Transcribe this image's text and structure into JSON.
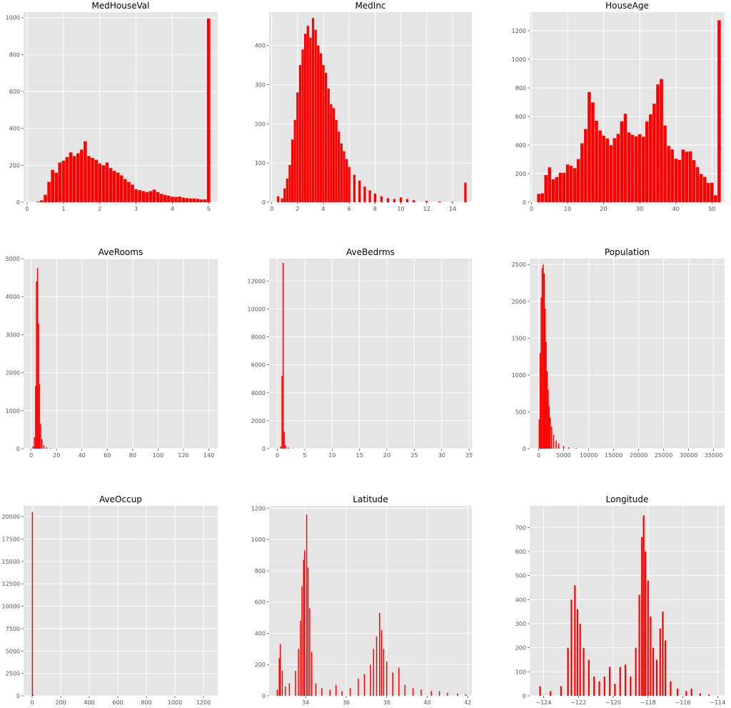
{
  "chart_data": [
    {
      "type": "bar",
      "title": "MedHouseVal",
      "xlim": [
        -0.1,
        5.25
      ],
      "ylim": [
        0,
        1030
      ],
      "xticks": [
        0,
        1,
        2,
        3,
        4,
        5
      ],
      "yticks": [
        0,
        200,
        400,
        600,
        800,
        1000
      ],
      "bars": [
        {
          "x": 0.15,
          "y": 0
        },
        {
          "x": 0.3,
          "y": 3
        },
        {
          "x": 0.4,
          "y": 10
        },
        {
          "x": 0.5,
          "y": 40
        },
        {
          "x": 0.6,
          "y": 110
        },
        {
          "x": 0.7,
          "y": 175
        },
        {
          "x": 0.8,
          "y": 160
        },
        {
          "x": 0.9,
          "y": 215
        },
        {
          "x": 1.0,
          "y": 225
        },
        {
          "x": 1.1,
          "y": 245
        },
        {
          "x": 1.2,
          "y": 270
        },
        {
          "x": 1.3,
          "y": 250
        },
        {
          "x": 1.4,
          "y": 265
        },
        {
          "x": 1.5,
          "y": 285
        },
        {
          "x": 1.6,
          "y": 330
        },
        {
          "x": 1.7,
          "y": 250
        },
        {
          "x": 1.8,
          "y": 240
        },
        {
          "x": 1.9,
          "y": 230
        },
        {
          "x": 2.0,
          "y": 210
        },
        {
          "x": 2.1,
          "y": 200
        },
        {
          "x": 2.2,
          "y": 215
        },
        {
          "x": 2.3,
          "y": 185
        },
        {
          "x": 2.4,
          "y": 170
        },
        {
          "x": 2.5,
          "y": 160
        },
        {
          "x": 2.6,
          "y": 145
        },
        {
          "x": 2.7,
          "y": 125
        },
        {
          "x": 2.8,
          "y": 110
        },
        {
          "x": 2.9,
          "y": 95
        },
        {
          "x": 3.0,
          "y": 70
        },
        {
          "x": 3.1,
          "y": 65
        },
        {
          "x": 3.2,
          "y": 60
        },
        {
          "x": 3.3,
          "y": 55
        },
        {
          "x": 3.4,
          "y": 60
        },
        {
          "x": 3.5,
          "y": 68
        },
        {
          "x": 3.6,
          "y": 55
        },
        {
          "x": 3.7,
          "y": 45
        },
        {
          "x": 3.8,
          "y": 40
        },
        {
          "x": 3.9,
          "y": 35
        },
        {
          "x": 4.0,
          "y": 30
        },
        {
          "x": 4.1,
          "y": 28
        },
        {
          "x": 4.2,
          "y": 30
        },
        {
          "x": 4.3,
          "y": 25
        },
        {
          "x": 4.4,
          "y": 22
        },
        {
          "x": 4.5,
          "y": 20
        },
        {
          "x": 4.6,
          "y": 20
        },
        {
          "x": 4.7,
          "y": 18
        },
        {
          "x": 4.8,
          "y": 15
        },
        {
          "x": 4.9,
          "y": 15
        },
        {
          "x": 5.0,
          "y": 995
        }
      ]
    },
    {
      "type": "bar",
      "title": "MedInc",
      "xlim": [
        -0.2,
        15.5
      ],
      "ylim": [
        0,
        485
      ],
      "xticks": [
        0,
        2,
        4,
        6,
        8,
        10,
        12,
        14
      ],
      "yticks": [
        0,
        100,
        200,
        300,
        400
      ],
      "bars": [
        {
          "x": 0.5,
          "y": 15
        },
        {
          "x": 0.8,
          "y": 10
        },
        {
          "x": 1.0,
          "y": 35
        },
        {
          "x": 1.2,
          "y": 60
        },
        {
          "x": 1.4,
          "y": 95
        },
        {
          "x": 1.6,
          "y": 160
        },
        {
          "x": 1.8,
          "y": 210
        },
        {
          "x": 2.0,
          "y": 280
        },
        {
          "x": 2.2,
          "y": 350
        },
        {
          "x": 2.4,
          "y": 390
        },
        {
          "x": 2.6,
          "y": 430
        },
        {
          "x": 2.8,
          "y": 450
        },
        {
          "x": 3.0,
          "y": 420
        },
        {
          "x": 3.2,
          "y": 470
        },
        {
          "x": 3.4,
          "y": 440
        },
        {
          "x": 3.6,
          "y": 400
        },
        {
          "x": 3.8,
          "y": 380
        },
        {
          "x": 4.0,
          "y": 350
        },
        {
          "x": 4.2,
          "y": 330
        },
        {
          "x": 4.4,
          "y": 290
        },
        {
          "x": 4.6,
          "y": 250
        },
        {
          "x": 4.8,
          "y": 240
        },
        {
          "x": 5.0,
          "y": 210
        },
        {
          "x": 5.2,
          "y": 180
        },
        {
          "x": 5.4,
          "y": 150
        },
        {
          "x": 5.6,
          "y": 130
        },
        {
          "x": 5.8,
          "y": 110
        },
        {
          "x": 6.0,
          "y": 90
        },
        {
          "x": 6.4,
          "y": 70
        },
        {
          "x": 6.8,
          "y": 55
        },
        {
          "x": 7.2,
          "y": 40
        },
        {
          "x": 7.6,
          "y": 30
        },
        {
          "x": 8.0,
          "y": 22
        },
        {
          "x": 8.5,
          "y": 15
        },
        {
          "x": 9.0,
          "y": 10
        },
        {
          "x": 9.5,
          "y": 8
        },
        {
          "x": 10.0,
          "y": 12
        },
        {
          "x": 10.5,
          "y": 8
        },
        {
          "x": 11.0,
          "y": 5
        },
        {
          "x": 12.0,
          "y": 3
        },
        {
          "x": 13.0,
          "y": 2
        },
        {
          "x": 14.0,
          "y": 1
        },
        {
          "x": 15.0,
          "y": 50
        }
      ]
    },
    {
      "type": "bar",
      "title": "HouseAge",
      "xlim": [
        -0.5,
        53.5
      ],
      "ylim": [
        0,
        1330
      ],
      "xticks": [
        0,
        10,
        20,
        30,
        40,
        50
      ],
      "yticks": [
        0,
        200,
        400,
        600,
        800,
        1000,
        1200
      ],
      "bars": [
        {
          "x": 2,
          "y": 58
        },
        {
          "x": 3,
          "y": 62
        },
        {
          "x": 4,
          "y": 190
        },
        {
          "x": 5,
          "y": 244
        },
        {
          "x": 6,
          "y": 160
        },
        {
          "x": 7,
          "y": 175
        },
        {
          "x": 8,
          "y": 206
        },
        {
          "x": 9,
          "y": 205
        },
        {
          "x": 10,
          "y": 264
        },
        {
          "x": 11,
          "y": 254
        },
        {
          "x": 12,
          "y": 238
        },
        {
          "x": 13,
          "y": 302
        },
        {
          "x": 14,
          "y": 412
        },
        {
          "x": 15,
          "y": 512
        },
        {
          "x": 16,
          "y": 771
        },
        {
          "x": 17,
          "y": 698
        },
        {
          "x": 18,
          "y": 570
        },
        {
          "x": 19,
          "y": 502
        },
        {
          "x": 20,
          "y": 465
        },
        {
          "x": 21,
          "y": 446
        },
        {
          "x": 22,
          "y": 399
        },
        {
          "x": 23,
          "y": 448
        },
        {
          "x": 24,
          "y": 478
        },
        {
          "x": 25,
          "y": 566
        },
        {
          "x": 26,
          "y": 619
        },
        {
          "x": 27,
          "y": 488
        },
        {
          "x": 28,
          "y": 471
        },
        {
          "x": 29,
          "y": 461
        },
        {
          "x": 30,
          "y": 476
        },
        {
          "x": 31,
          "y": 458
        },
        {
          "x": 32,
          "y": 565
        },
        {
          "x": 33,
          "y": 615
        },
        {
          "x": 34,
          "y": 689
        },
        {
          "x": 35,
          "y": 824
        },
        {
          "x": 36,
          "y": 862
        },
        {
          "x": 37,
          "y": 537
        },
        {
          "x": 38,
          "y": 394
        },
        {
          "x": 39,
          "y": 369
        },
        {
          "x": 40,
          "y": 304
        },
        {
          "x": 41,
          "y": 296
        },
        {
          "x": 42,
          "y": 368
        },
        {
          "x": 43,
          "y": 353
        },
        {
          "x": 44,
          "y": 356
        },
        {
          "x": 45,
          "y": 294
        },
        {
          "x": 46,
          "y": 245
        },
        {
          "x": 47,
          "y": 198
        },
        {
          "x": 48,
          "y": 177
        },
        {
          "x": 49,
          "y": 134
        },
        {
          "x": 50,
          "y": 136
        },
        {
          "x": 51,
          "y": 48
        },
        {
          "x": 52,
          "y": 1273
        }
      ]
    },
    {
      "type": "bar",
      "title": "AveRooms",
      "xlim": [
        -6,
        147
      ],
      "ylim": [
        0,
        5000
      ],
      "xticks": [
        0,
        20,
        40,
        60,
        80,
        100,
        120,
        140
      ],
      "yticks": [
        0,
        1000,
        2000,
        3000,
        4000,
        5000
      ],
      "bars": [
        {
          "x": 1.5,
          "y": 60
        },
        {
          "x": 2.5,
          "y": 300
        },
        {
          "x": 3.5,
          "y": 1650
        },
        {
          "x": 4.2,
          "y": 4400
        },
        {
          "x": 5.0,
          "y": 4750
        },
        {
          "x": 5.8,
          "y": 3300
        },
        {
          "x": 6.6,
          "y": 1700
        },
        {
          "x": 7.5,
          "y": 650
        },
        {
          "x": 8.5,
          "y": 250
        },
        {
          "x": 10,
          "y": 90
        },
        {
          "x": 12,
          "y": 40
        },
        {
          "x": 15,
          "y": 15
        },
        {
          "x": 18,
          "y": 8
        },
        {
          "x": 25,
          "y": 3
        }
      ]
    },
    {
      "type": "bar",
      "title": "AveBedrms",
      "xlim": [
        -1.5,
        35.5
      ],
      "ylim": [
        0,
        13600
      ],
      "xticks": [
        0,
        5,
        10,
        15,
        20,
        25,
        30,
        35
      ],
      "yticks": [
        0,
        2000,
        4000,
        6000,
        8000,
        10000,
        12000
      ],
      "bars": [
        {
          "x": 0.6,
          "y": 150
        },
        {
          "x": 0.85,
          "y": 5200
        },
        {
          "x": 1.05,
          "y": 13300
        },
        {
          "x": 1.25,
          "y": 1200
        },
        {
          "x": 1.5,
          "y": 250
        },
        {
          "x": 2.0,
          "y": 80
        },
        {
          "x": 2.8,
          "y": 20
        },
        {
          "x": 4.0,
          "y": 5
        }
      ]
    },
    {
      "type": "bar",
      "title": "Population",
      "xlim": [
        -1800,
        37200
      ],
      "ylim": [
        0,
        2580
      ],
      "xticks": [
        0,
        5000,
        10000,
        15000,
        20000,
        25000,
        30000,
        35000
      ],
      "yticks": [
        0,
        500,
        1000,
        1500,
        2000,
        2500
      ],
      "bars": [
        {
          "x": 100,
          "y": 400
        },
        {
          "x": 300,
          "y": 1300
        },
        {
          "x": 500,
          "y": 2050
        },
        {
          "x": 700,
          "y": 2450
        },
        {
          "x": 900,
          "y": 2500
        },
        {
          "x": 1100,
          "y": 2380
        },
        {
          "x": 1300,
          "y": 1900
        },
        {
          "x": 1500,
          "y": 1450
        },
        {
          "x": 1700,
          "y": 1050
        },
        {
          "x": 1900,
          "y": 800
        },
        {
          "x": 2100,
          "y": 580
        },
        {
          "x": 2300,
          "y": 420
        },
        {
          "x": 2600,
          "y": 300
        },
        {
          "x": 3000,
          "y": 190
        },
        {
          "x": 3500,
          "y": 110
        },
        {
          "x": 4000,
          "y": 70
        },
        {
          "x": 5000,
          "y": 35
        },
        {
          "x": 6000,
          "y": 18
        },
        {
          "x": 7500,
          "y": 8
        },
        {
          "x": 9000,
          "y": 4
        },
        {
          "x": 11000,
          "y": 2
        }
      ]
    },
    {
      "type": "bar",
      "title": "AveOccup",
      "xlim": [
        -60,
        1300
      ],
      "ylim": [
        0,
        21200
      ],
      "xticks": [
        0,
        200,
        400,
        600,
        800,
        1000,
        1200
      ],
      "yticks": [
        0,
        2500,
        5000,
        7500,
        10000,
        12500,
        15000,
        17500,
        20000
      ],
      "bars": [
        {
          "x": 2,
          "y": 20500
        },
        {
          "x": 8,
          "y": 100
        }
      ]
    },
    {
      "type": "bar",
      "title": "Latitude",
      "xlim": [
        32.2,
        42.2
      ],
      "ylim": [
        0,
        1215
      ],
      "xticks": [
        34,
        36,
        38,
        40,
        42
      ],
      "yticks": [
        0,
        200,
        400,
        600,
        800,
        1000,
        1200
      ],
      "bars": [
        {
          "x": 32.6,
          "y": 40
        },
        {
          "x": 32.7,
          "y": 240
        },
        {
          "x": 32.75,
          "y": 330
        },
        {
          "x": 32.85,
          "y": 160
        },
        {
          "x": 33.0,
          "y": 60
        },
        {
          "x": 33.2,
          "y": 80
        },
        {
          "x": 33.5,
          "y": 160
        },
        {
          "x": 33.65,
          "y": 300
        },
        {
          "x": 33.75,
          "y": 480
        },
        {
          "x": 33.82,
          "y": 700
        },
        {
          "x": 33.9,
          "y": 870
        },
        {
          "x": 33.95,
          "y": 930
        },
        {
          "x": 34.05,
          "y": 1160
        },
        {
          "x": 34.12,
          "y": 820
        },
        {
          "x": 34.2,
          "y": 560
        },
        {
          "x": 34.3,
          "y": 280
        },
        {
          "x": 34.5,
          "y": 80
        },
        {
          "x": 34.8,
          "y": 50
        },
        {
          "x": 35.2,
          "y": 40
        },
        {
          "x": 35.5,
          "y": 70
        },
        {
          "x": 35.8,
          "y": 30
        },
        {
          "x": 36.2,
          "y": 50
        },
        {
          "x": 36.6,
          "y": 110
        },
        {
          "x": 36.9,
          "y": 140
        },
        {
          "x": 37.2,
          "y": 200
        },
        {
          "x": 37.35,
          "y": 300
        },
        {
          "x": 37.5,
          "y": 380
        },
        {
          "x": 37.65,
          "y": 530
        },
        {
          "x": 37.75,
          "y": 420
        },
        {
          "x": 37.85,
          "y": 300
        },
        {
          "x": 38.0,
          "y": 220
        },
        {
          "x": 38.3,
          "y": 150
        },
        {
          "x": 38.6,
          "y": 180
        },
        {
          "x": 38.9,
          "y": 70
        },
        {
          "x": 39.3,
          "y": 50
        },
        {
          "x": 39.7,
          "y": 40
        },
        {
          "x": 40.2,
          "y": 30
        },
        {
          "x": 40.6,
          "y": 30
        },
        {
          "x": 41.0,
          "y": 20
        },
        {
          "x": 41.5,
          "y": 15
        },
        {
          "x": 41.9,
          "y": 10
        }
      ]
    },
    {
      "type": "bar",
      "title": "Longitude",
      "xlim": [
        -124.8,
        -113.6
      ],
      "ylim": [
        0,
        790
      ],
      "xticks": [
        -124,
        -122,
        -120,
        -118,
        -116,
        -114
      ],
      "yticks": [
        0,
        100,
        200,
        300,
        400,
        500,
        600,
        700
      ],
      "bars": [
        {
          "x": -124.2,
          "y": 40
        },
        {
          "x": -123.6,
          "y": 20
        },
        {
          "x": -123.0,
          "y": 40
        },
        {
          "x": -122.6,
          "y": 200
        },
        {
          "x": -122.4,
          "y": 400
        },
        {
          "x": -122.2,
          "y": 460
        },
        {
          "x": -122.05,
          "y": 360
        },
        {
          "x": -121.9,
          "y": 300
        },
        {
          "x": -121.7,
          "y": 200
        },
        {
          "x": -121.4,
          "y": 150
        },
        {
          "x": -121.1,
          "y": 80
        },
        {
          "x": -120.8,
          "y": 60
        },
        {
          "x": -120.5,
          "y": 80
        },
        {
          "x": -120.2,
          "y": 120
        },
        {
          "x": -119.9,
          "y": 50
        },
        {
          "x": -119.6,
          "y": 120
        },
        {
          "x": -119.3,
          "y": 130
        },
        {
          "x": -119.0,
          "y": 80
        },
        {
          "x": -118.7,
          "y": 200
        },
        {
          "x": -118.5,
          "y": 420
        },
        {
          "x": -118.35,
          "y": 660
        },
        {
          "x": -118.25,
          "y": 750
        },
        {
          "x": -118.15,
          "y": 600
        },
        {
          "x": -118.0,
          "y": 480
        },
        {
          "x": -117.85,
          "y": 330
        },
        {
          "x": -117.7,
          "y": 200
        },
        {
          "x": -117.5,
          "y": 150
        },
        {
          "x": -117.3,
          "y": 280
        },
        {
          "x": -117.15,
          "y": 350
        },
        {
          "x": -117.0,
          "y": 230
        },
        {
          "x": -116.7,
          "y": 60
        },
        {
          "x": -116.3,
          "y": 30
        },
        {
          "x": -115.8,
          "y": 20
        },
        {
          "x": -115.5,
          "y": 30
        },
        {
          "x": -115.0,
          "y": 10
        },
        {
          "x": -114.5,
          "y": 5
        }
      ]
    }
  ]
}
